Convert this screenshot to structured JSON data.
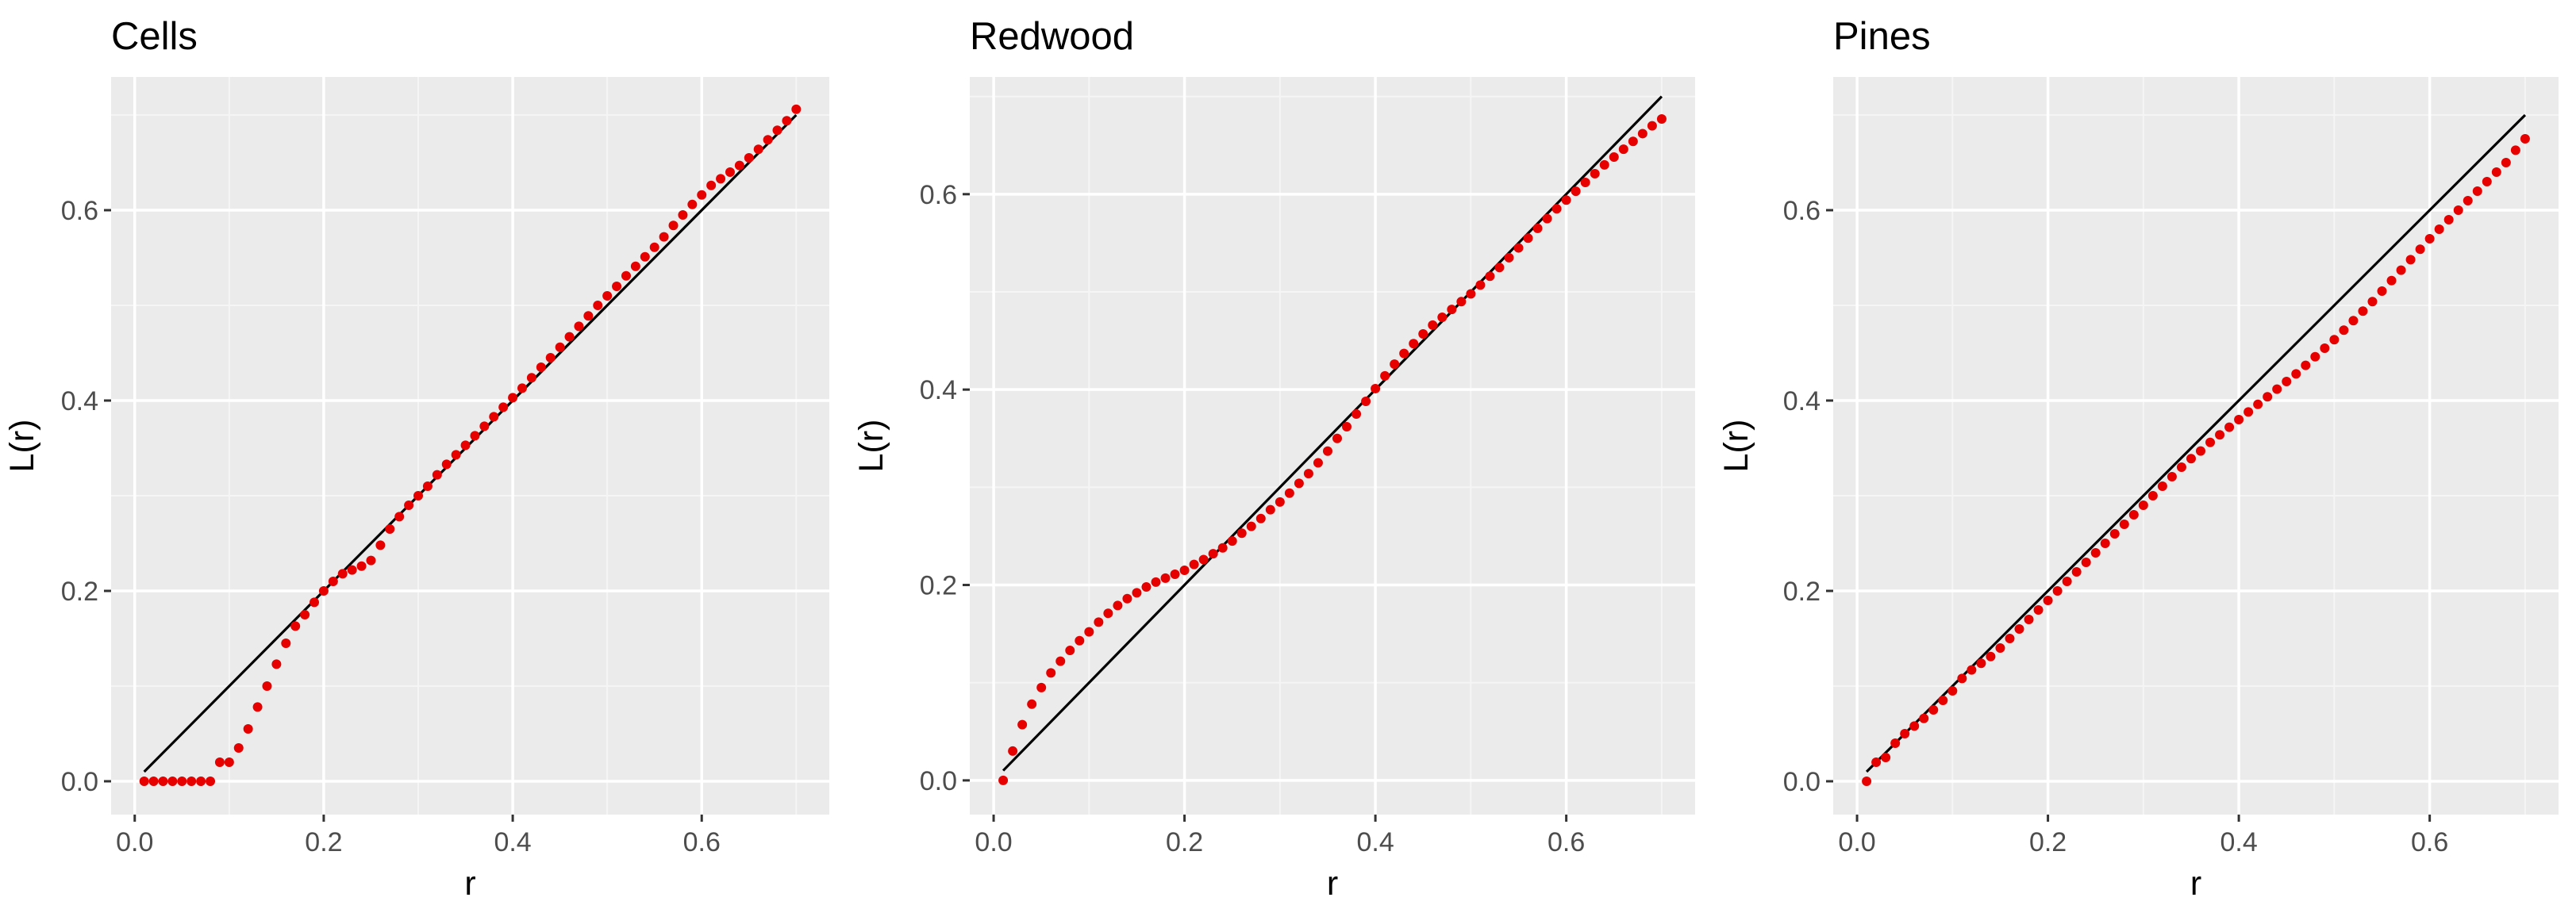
{
  "figure": {
    "background": "#ffffff"
  },
  "style": {
    "panel_background": "#ebebeb",
    "grid_major_color": "#ffffff",
    "grid_minor_color": "#f5f5f5",
    "tick_color": "#333333",
    "point_color": "#e60000",
    "line_color": "#000000"
  },
  "chart_data": [
    {
      "type": "scatter",
      "title": "Cells",
      "xlabel": "r",
      "ylabel": "L(r)",
      "xlim": [
        -0.025,
        0.735
      ],
      "ylim": [
        -0.035,
        0.74
      ],
      "xticks": [
        0.0,
        0.2,
        0.4,
        0.6
      ],
      "xtick_labels": [
        "0.0",
        "0.2",
        "0.4",
        "0.6"
      ],
      "yticks": [
        0.0,
        0.2,
        0.4,
        0.6
      ],
      "ytick_labels": [
        "0.0",
        "0.2",
        "0.4",
        "0.6"
      ],
      "grid": true,
      "reference_line": {
        "x": [
          0.01,
          0.7
        ],
        "y": [
          0.01,
          0.7
        ]
      },
      "series": [
        {
          "x": [
            0.01,
            0.02,
            0.03,
            0.04,
            0.05,
            0.06,
            0.07,
            0.08,
            0.09,
            0.1,
            0.11,
            0.12,
            0.13,
            0.14,
            0.15,
            0.16,
            0.17,
            0.18,
            0.19,
            0.2,
            0.21,
            0.22,
            0.23,
            0.24,
            0.25,
            0.26,
            0.27,
            0.28,
            0.29,
            0.3,
            0.31,
            0.32,
            0.33,
            0.34,
            0.35,
            0.36,
            0.37,
            0.38,
            0.39,
            0.4,
            0.41,
            0.42,
            0.43,
            0.44,
            0.45,
            0.46,
            0.47,
            0.48,
            0.49,
            0.5,
            0.51,
            0.52,
            0.53,
            0.54,
            0.55,
            0.56,
            0.57,
            0.58,
            0.59,
            0.6,
            0.61,
            0.62,
            0.63,
            0.64,
            0.65,
            0.66,
            0.67,
            0.68,
            0.69,
            0.7
          ],
          "y": [
            0,
            0,
            0,
            0,
            0,
            0,
            0,
            0,
            0.02,
            0.02,
            0.035,
            0.055,
            0.078,
            0.1,
            0.123,
            0.145,
            0.163,
            0.175,
            0.188,
            0.2,
            0.21,
            0.218,
            0.222,
            0.226,
            0.232,
            0.248,
            0.265,
            0.278,
            0.29,
            0.3,
            0.31,
            0.322,
            0.333,
            0.343,
            0.353,
            0.363,
            0.373,
            0.383,
            0.393,
            0.403,
            0.413,
            0.424,
            0.435,
            0.445,
            0.456,
            0.467,
            0.478,
            0.489,
            0.5,
            0.51,
            0.52,
            0.531,
            0.541,
            0.551,
            0.561,
            0.572,
            0.584,
            0.595,
            0.606,
            0.616,
            0.626,
            0.633,
            0.64,
            0.647,
            0.655,
            0.664,
            0.674,
            0.684,
            0.694,
            0.706
          ]
        }
      ]
    },
    {
      "type": "scatter",
      "title": "Redwood",
      "xlabel": "r",
      "ylabel": "L(r)",
      "xlim": [
        -0.025,
        0.735
      ],
      "ylim": [
        -0.035,
        0.72
      ],
      "xticks": [
        0.0,
        0.2,
        0.4,
        0.6
      ],
      "xtick_labels": [
        "0.0",
        "0.2",
        "0.4",
        "0.6"
      ],
      "yticks": [
        0.0,
        0.2,
        0.4,
        0.6
      ],
      "ytick_labels": [
        "0.0",
        "0.2",
        "0.4",
        "0.6"
      ],
      "grid": true,
      "reference_line": {
        "x": [
          0.01,
          0.7
        ],
        "y": [
          0.01,
          0.7
        ]
      },
      "series": [
        {
          "x": [
            0.01,
            0.02,
            0.03,
            0.04,
            0.05,
            0.06,
            0.07,
            0.08,
            0.09,
            0.1,
            0.11,
            0.12,
            0.13,
            0.14,
            0.15,
            0.16,
            0.17,
            0.18,
            0.19,
            0.2,
            0.21,
            0.22,
            0.23,
            0.24,
            0.25,
            0.26,
            0.27,
            0.28,
            0.29,
            0.3,
            0.31,
            0.32,
            0.33,
            0.34,
            0.35,
            0.36,
            0.37,
            0.38,
            0.39,
            0.4,
            0.41,
            0.42,
            0.43,
            0.44,
            0.45,
            0.46,
            0.47,
            0.48,
            0.49,
            0.5,
            0.51,
            0.52,
            0.53,
            0.54,
            0.55,
            0.56,
            0.57,
            0.58,
            0.59,
            0.6,
            0.61,
            0.62,
            0.63,
            0.64,
            0.65,
            0.66,
            0.67,
            0.68,
            0.69,
            0.7
          ],
          "y": [
            0,
            0.03,
            0.057,
            0.078,
            0.095,
            0.11,
            0.122,
            0.133,
            0.143,
            0.152,
            0.162,
            0.171,
            0.179,
            0.186,
            0.192,
            0.198,
            0.203,
            0.207,
            0.211,
            0.215,
            0.221,
            0.226,
            0.232,
            0.238,
            0.245,
            0.253,
            0.26,
            0.268,
            0.277,
            0.285,
            0.294,
            0.304,
            0.314,
            0.325,
            0.337,
            0.35,
            0.362,
            0.375,
            0.388,
            0.401,
            0.414,
            0.426,
            0.437,
            0.447,
            0.457,
            0.466,
            0.474,
            0.482,
            0.49,
            0.498,
            0.507,
            0.516,
            0.525,
            0.535,
            0.545,
            0.555,
            0.565,
            0.575,
            0.585,
            0.594,
            0.603,
            0.612,
            0.621,
            0.63,
            0.638,
            0.646,
            0.654,
            0.662,
            0.67,
            0.677
          ]
        }
      ]
    },
    {
      "type": "scatter",
      "title": "Pines",
      "xlabel": "r",
      "ylabel": "L(r)",
      "xlim": [
        -0.025,
        0.735
      ],
      "ylim": [
        -0.035,
        0.74
      ],
      "xticks": [
        0.0,
        0.2,
        0.4,
        0.6
      ],
      "xtick_labels": [
        "0.0",
        "0.2",
        "0.4",
        "0.6"
      ],
      "yticks": [
        0.0,
        0.2,
        0.4,
        0.6
      ],
      "ytick_labels": [
        "0.0",
        "0.2",
        "0.4",
        "0.6"
      ],
      "grid": true,
      "reference_line": {
        "x": [
          0.01,
          0.7
        ],
        "y": [
          0.01,
          0.7
        ]
      },
      "series": [
        {
          "x": [
            0.01,
            0.02,
            0.03,
            0.04,
            0.05,
            0.06,
            0.07,
            0.08,
            0.09,
            0.1,
            0.11,
            0.12,
            0.13,
            0.14,
            0.15,
            0.16,
            0.17,
            0.18,
            0.19,
            0.2,
            0.21,
            0.22,
            0.23,
            0.24,
            0.25,
            0.26,
            0.27,
            0.28,
            0.29,
            0.3,
            0.31,
            0.32,
            0.33,
            0.34,
            0.35,
            0.36,
            0.37,
            0.38,
            0.39,
            0.4,
            0.41,
            0.42,
            0.43,
            0.44,
            0.45,
            0.46,
            0.47,
            0.48,
            0.49,
            0.5,
            0.51,
            0.52,
            0.53,
            0.54,
            0.55,
            0.56,
            0.57,
            0.58,
            0.59,
            0.6,
            0.61,
            0.62,
            0.63,
            0.64,
            0.65,
            0.66,
            0.67,
            0.68,
            0.69,
            0.7
          ],
          "y": [
            0,
            0.02,
            0.025,
            0.04,
            0.05,
            0.058,
            0.066,
            0.075,
            0.085,
            0.095,
            0.108,
            0.117,
            0.124,
            0.131,
            0.14,
            0.15,
            0.16,
            0.17,
            0.18,
            0.19,
            0.2,
            0.21,
            0.22,
            0.23,
            0.24,
            0.25,
            0.26,
            0.27,
            0.28,
            0.29,
            0.3,
            0.31,
            0.32,
            0.33,
            0.339,
            0.347,
            0.356,
            0.364,
            0.372,
            0.38,
            0.388,
            0.396,
            0.404,
            0.412,
            0.42,
            0.428,
            0.437,
            0.446,
            0.455,
            0.464,
            0.474,
            0.484,
            0.494,
            0.504,
            0.515,
            0.526,
            0.537,
            0.548,
            0.559,
            0.57,
            0.58,
            0.59,
            0.6,
            0.61,
            0.62,
            0.63,
            0.64,
            0.65,
            0.663,
            0.675
          ]
        }
      ]
    }
  ]
}
